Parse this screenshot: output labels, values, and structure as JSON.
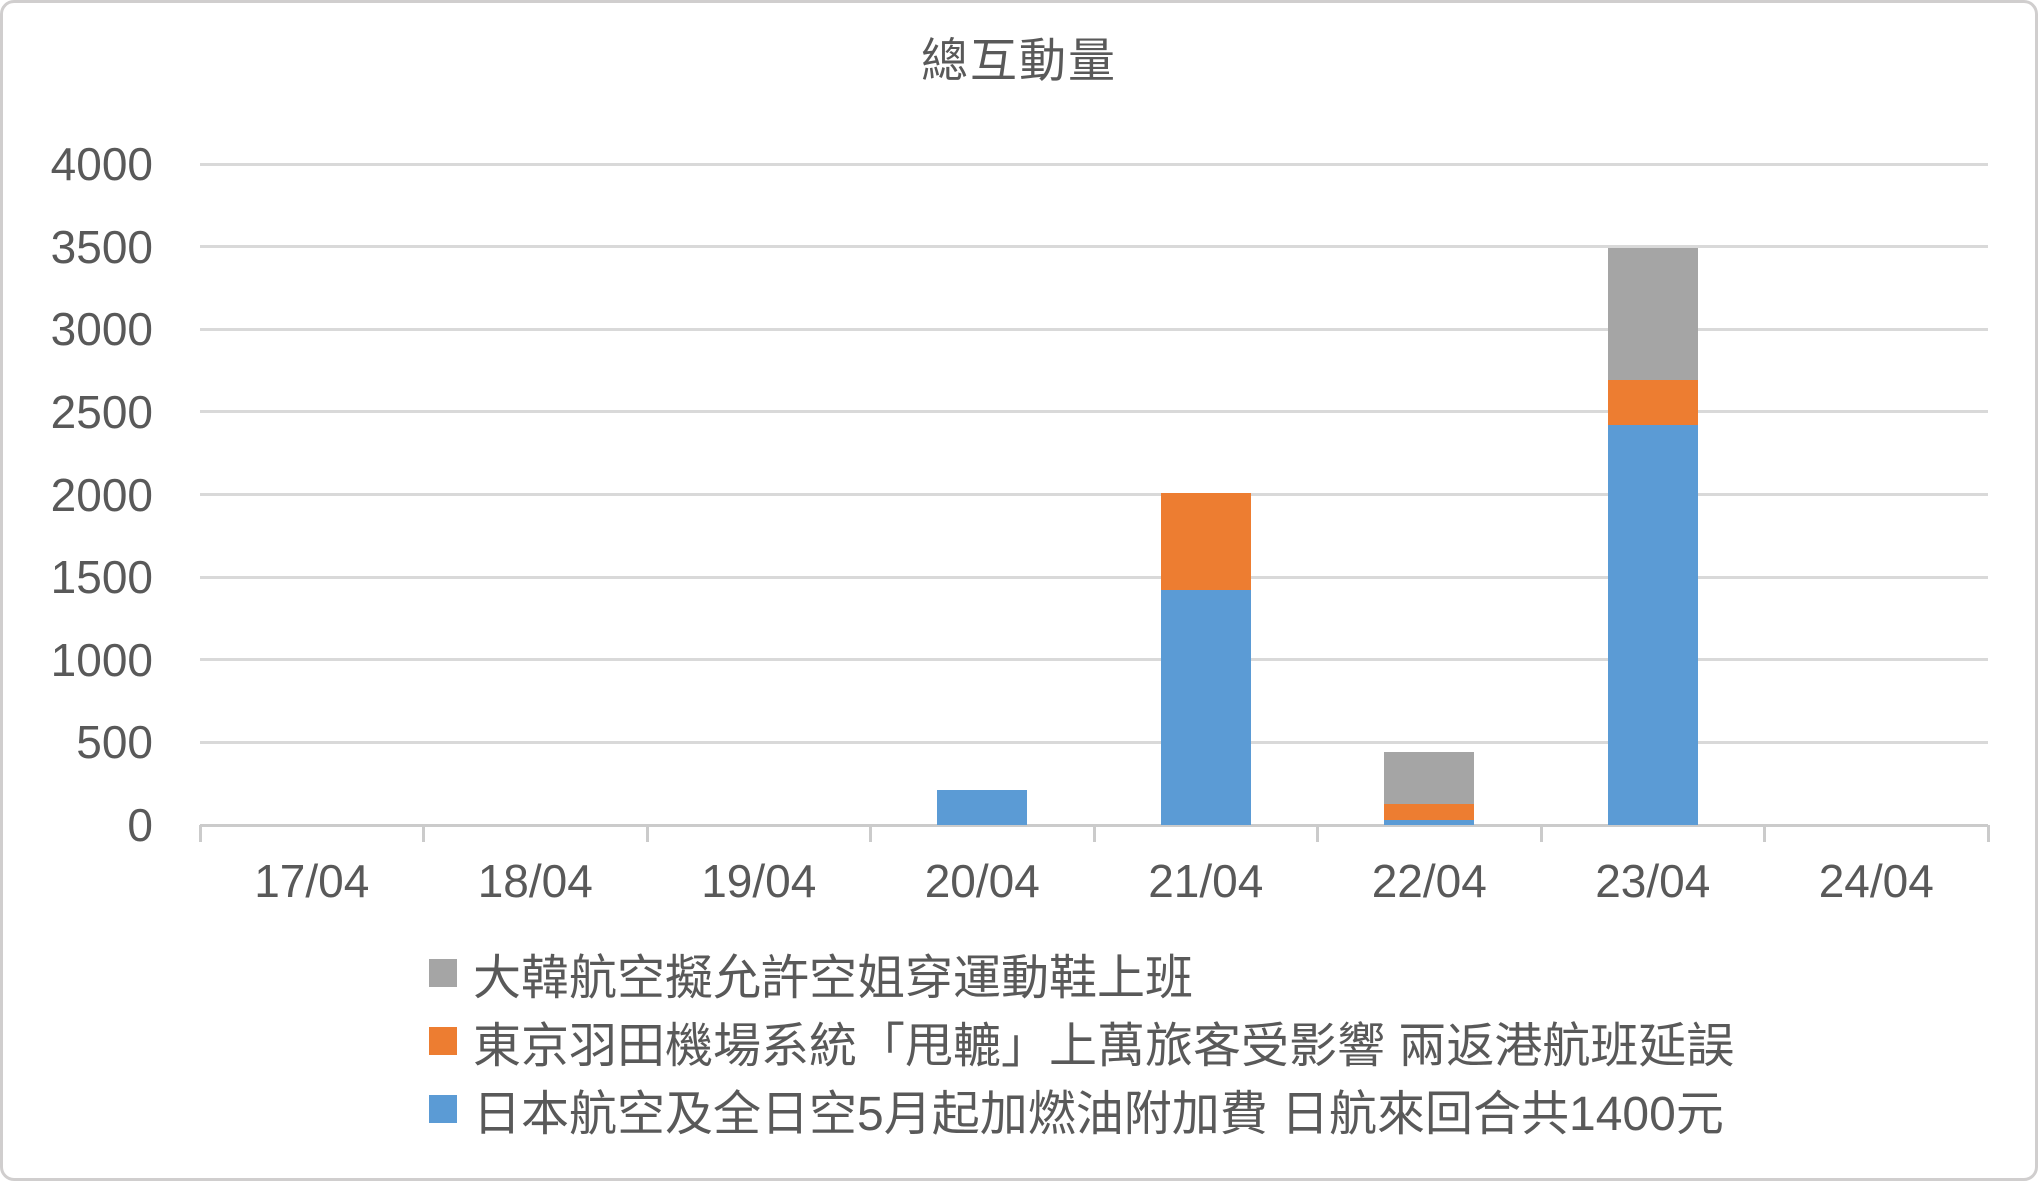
{
  "chart_data": {
    "type": "bar",
    "stacked": true,
    "title": "總互動量",
    "categories": [
      "17/04",
      "18/04",
      "19/04",
      "20/04",
      "21/04",
      "22/04",
      "23/04",
      "24/04"
    ],
    "series": [
      {
        "name": "日本航空及全日空5月起加燃油附加費 日航來回合共1400元",
        "color": "#5B9BD5",
        "values": [
          0,
          0,
          0,
          210,
          1420,
          30,
          2420,
          0
        ]
      },
      {
        "name": "東京羽田機場系統「甩轆」上萬旅客受影響 兩返港航班延誤",
        "color": "#ED7D31",
        "values": [
          0,
          0,
          0,
          0,
          590,
          100,
          270,
          0
        ]
      },
      {
        "name": "大韓航空擬允許空姐穿運動鞋上班",
        "color": "#A5A5A5",
        "values": [
          0,
          0,
          0,
          0,
          0,
          310,
          800,
          0
        ]
      }
    ],
    "ylim": [
      0,
      4000
    ],
    "ytick_step": 500,
    "ytick_labels": [
      "0",
      "500",
      "1000",
      "1500",
      "2000",
      "2500",
      "3000",
      "3500",
      "4000"
    ],
    "grid": true,
    "legend_position": "bottom",
    "legend_display_order": "reversed"
  },
  "style": {
    "text_color": "#595959",
    "gridline_color": "#D9D9D9",
    "axis_color": "#CBCBCB",
    "border_color": "#D0CECE",
    "background": "#FFFFFF"
  }
}
